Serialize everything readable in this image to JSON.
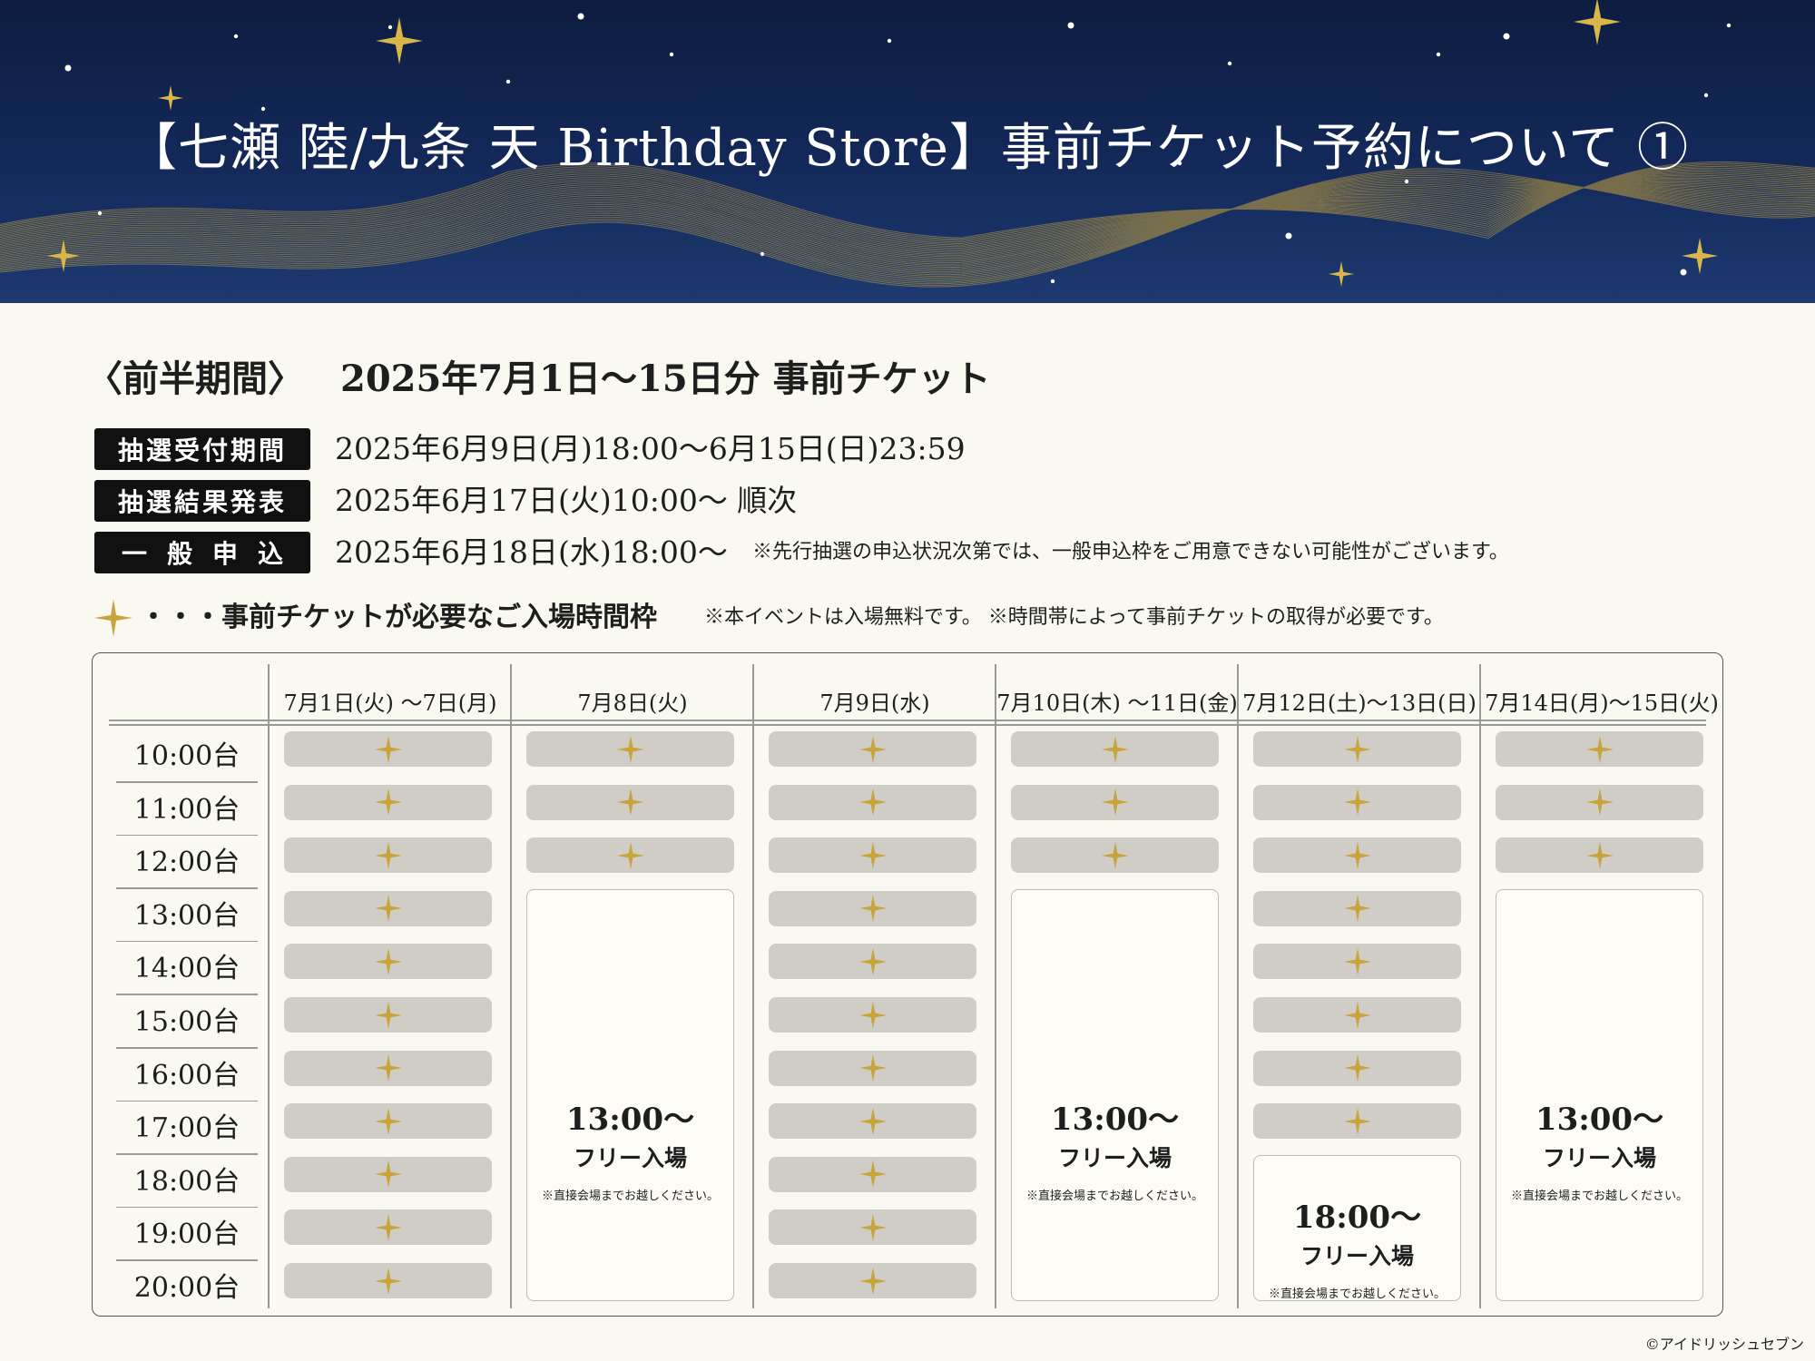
{
  "header": {
    "title": "【七瀬 陸/九条 天 Birthday Store】事前チケット予約について ①"
  },
  "period": {
    "label": "〈前半期間〉",
    "title": "2025年7月1日〜15日分 事前チケット"
  },
  "info": [
    {
      "label": "抽選受付期間",
      "value": "2025年6月9日(月)18:00〜6月15日(日)23:59",
      "note": ""
    },
    {
      "label": "抽選結果発表",
      "value": "2025年6月17日(火)10:00〜 順次",
      "note": ""
    },
    {
      "label": "一般申込",
      "value": "2025年6月18日(水)18:00〜",
      "note": "※先行抽選の申込状況次第では、一般申込枠をご用意できない可能性がございます。"
    }
  ],
  "legend": {
    "text": "・・・事前チケットが必要なご入場時間枠",
    "note": "※本イベントは入場無料です。 ※時間帯によって事前チケットの取得が必要です。"
  },
  "schedule": {
    "days": [
      "7月1日(火) 〜7日(月)",
      "7月8日(火)",
      "7月9日(水)",
      "7月10日(木) 〜11日(金)",
      "7月12日(土)〜13日(日)",
      "7月14日(月)〜15日(火)"
    ],
    "times": [
      "10:00台",
      "11:00台",
      "12:00台",
      "13:00台",
      "14:00台",
      "15:00台",
      "16:00台",
      "17:00台",
      "18:00台",
      "19:00台",
      "20:00台"
    ],
    "ticket_slots_per_day": [
      11,
      3,
      11,
      3,
      8,
      3
    ],
    "free_entry": [
      {
        "day_index": 1,
        "from_time_index": 3,
        "time": "13:00〜",
        "label": "フリー入場",
        "note": "※直接会場までお越しください。"
      },
      {
        "day_index": 3,
        "from_time_index": 3,
        "time": "13:00〜",
        "label": "フリー入場",
        "note": "※直接会場までお越しください。"
      },
      {
        "day_index": 4,
        "from_time_index": 8,
        "time": "18:00〜",
        "label": "フリー入場",
        "note": "※直接会場までお越しください。"
      },
      {
        "day_index": 5,
        "from_time_index": 3,
        "time": "13:00〜",
        "label": "フリー入場",
        "note": "※直接会場までお越しください。"
      }
    ]
  },
  "copyright": "©アイドリッシュセブン",
  "colors": {
    "navy": "#13295a",
    "gold": "#c9a43c",
    "slot_gray": "#cfcdc6",
    "label_black": "#111111"
  }
}
